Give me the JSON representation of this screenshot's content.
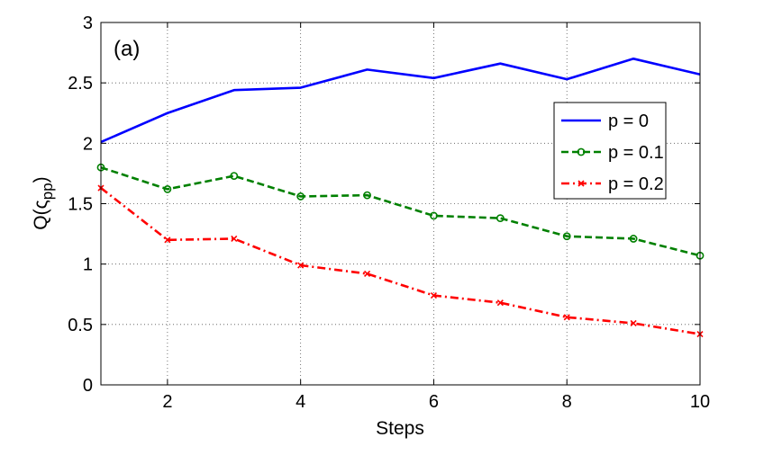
{
  "chart_data": {
    "type": "line",
    "panel_label": "(a)",
    "xlabel": "Steps",
    "ylabel": {
      "main": "Q(",
      "greek": "ς",
      "sub": "pp",
      "close": ")"
    },
    "xlim": [
      1,
      10
    ],
    "ylim": [
      0,
      3
    ],
    "x_ticks": [
      2,
      4,
      6,
      8,
      10
    ],
    "y_ticks": [
      0,
      0.5,
      1,
      1.5,
      2,
      2.5,
      3
    ],
    "y_tick_labels": [
      "0",
      "0.5",
      "1",
      "1.5",
      "2",
      "2.5",
      "3"
    ],
    "x_tick_labels": [
      "2",
      "4",
      "6",
      "8",
      "10"
    ],
    "grid": true,
    "legend_position": "right",
    "x": [
      1,
      2,
      3,
      4,
      5,
      6,
      7,
      8,
      9,
      10
    ],
    "series": [
      {
        "name": "p = 0",
        "color": "#0000ff",
        "dash": "solid",
        "marker": "none",
        "values": [
          2.01,
          2.25,
          2.44,
          2.46,
          2.61,
          2.54,
          2.66,
          2.53,
          2.7,
          2.57
        ]
      },
      {
        "name": "p = 0.1",
        "color": "#008000",
        "dash": "dashed",
        "marker": "circle",
        "values": [
          1.8,
          1.62,
          1.73,
          1.56,
          1.57,
          1.4,
          1.38,
          1.23,
          1.21,
          1.07
        ]
      },
      {
        "name": "p = 0.2",
        "color": "#ff0000",
        "dash": "dashdot",
        "marker": "x",
        "values": [
          1.63,
          1.2,
          1.21,
          0.99,
          0.92,
          0.74,
          0.68,
          0.56,
          0.51,
          0.42
        ]
      }
    ]
  }
}
